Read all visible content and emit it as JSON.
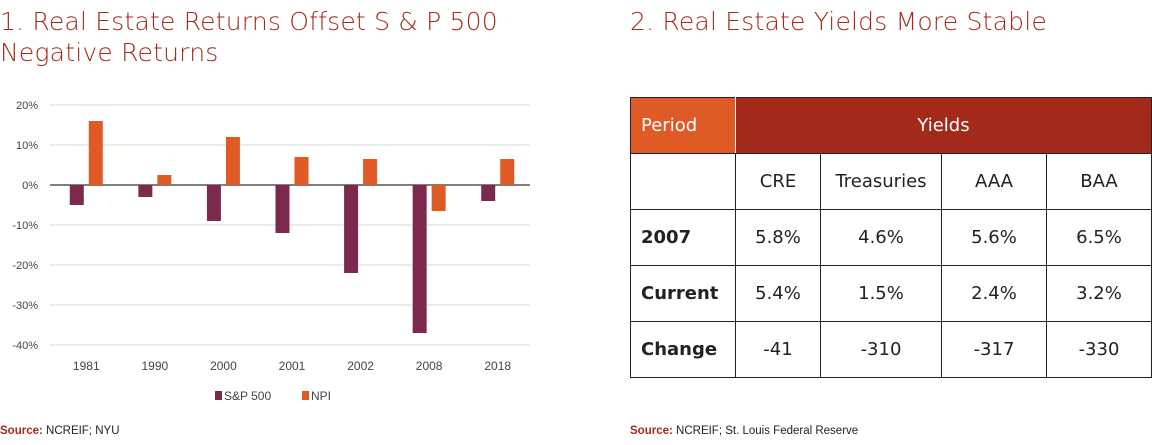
{
  "left": {
    "title": "1. Real Estate Returns Offset S & P 500 Negative Returns",
    "source_label": "Source:",
    "source_text": "NCREIF; NYU"
  },
  "right": {
    "title": "2. Real Estate Yields More Stable",
    "source_label": "Source:",
    "source_text": "NCREIF; St. Louis Federal Reserve",
    "table": {
      "header_period": "Period",
      "header_yields": "Yields",
      "columns": [
        "CRE",
        "Treasuries",
        "AAA",
        "BAA"
      ],
      "rows": [
        {
          "label": "2007",
          "values": [
            "5.8%",
            "4.6%",
            "5.6%",
            "6.5%"
          ]
        },
        {
          "label": "Current",
          "values": [
            "5.4%",
            "1.5%",
            "2.4%",
            "3.2%"
          ]
        },
        {
          "label": "Change",
          "values": [
            "-41",
            "-310",
            "-317",
            "-330"
          ]
        }
      ]
    }
  },
  "colors": {
    "sp500": "#7b2a4e",
    "npi": "#e05a25",
    "title": "#a32a1a",
    "header_dark": "#a32a1a",
    "header_orange": "#e05a25"
  },
  "chart_data": {
    "type": "bar",
    "categories": [
      "1981",
      "1990",
      "2000",
      "2001",
      "2002",
      "2008",
      "2018"
    ],
    "series": [
      {
        "name": "S&P 500",
        "values": [
          -5,
          -3,
          -9,
          -12,
          -22,
          -37,
          -4
        ]
      },
      {
        "name": "NPI",
        "values": [
          16,
          2.5,
          12,
          7,
          6.5,
          -6.5,
          6.5
        ]
      }
    ],
    "ylim": [
      -40,
      20
    ],
    "yticks": [
      20,
      10,
      0,
      -10,
      -20,
      -30,
      -40
    ],
    "ytick_labels": [
      "20%",
      "10%",
      "0%",
      "-10%",
      "-20%",
      "-30%",
      "-40%"
    ],
    "grid": true,
    "legend": "bottom"
  }
}
